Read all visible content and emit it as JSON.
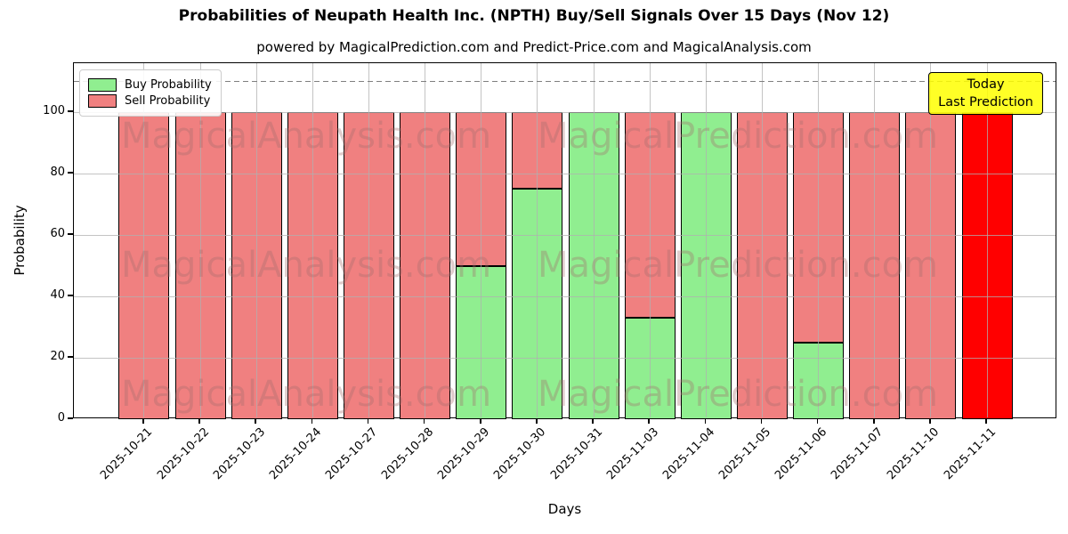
{
  "title": "Probabilities of Neupath Health Inc. (NPTH) Buy/Sell Signals Over 15 Days (Nov 12)",
  "subtitle": "powered by MagicalPrediction.com and Predict-Price.com and MagicalAnalysis.com",
  "annotation": {
    "line1": "Today",
    "line2": "Last Prediction",
    "bg_color": "#ffff00"
  },
  "watermarks": [
    "MagicalAnalysis.com",
    "MagicalPrediction.com"
  ],
  "chart_data": {
    "type": "bar",
    "stacked": true,
    "title": "Probabilities of Neupath Health Inc. (NPTH) Buy/Sell Signals Over 15 Days (Nov 12)",
    "xlabel": "Days",
    "ylabel": "Probability",
    "categories": [
      "2025-10-21",
      "2025-10-22",
      "2025-10-23",
      "2025-10-24",
      "2025-10-27",
      "2025-10-28",
      "2025-10-29",
      "2025-10-30",
      "2025-10-31",
      "2025-11-03",
      "2025-11-04",
      "2025-11-05",
      "2025-11-06",
      "2025-11-07",
      "2025-11-10",
      "2025-11-11"
    ],
    "series": [
      {
        "name": "Buy Probability",
        "color": "#90ee90",
        "values": [
          0,
          0,
          0,
          0,
          0,
          0,
          50,
          75,
          100,
          33,
          100,
          0,
          25,
          0,
          0,
          0
        ]
      },
      {
        "name": "Sell Probability",
        "color": "#f08080",
        "values": [
          100,
          100,
          100,
          100,
          100,
          100,
          50,
          25,
          0,
          67,
          0,
          100,
          75,
          100,
          100,
          100
        ]
      }
    ],
    "today_index": 15,
    "today_sell_color": "#ff0000",
    "yticks": [
      0,
      20,
      40,
      60,
      80,
      100
    ],
    "ylim": [
      0,
      116
    ],
    "dashed_line_y": 110,
    "grid": true,
    "legend_position": "upper left"
  }
}
